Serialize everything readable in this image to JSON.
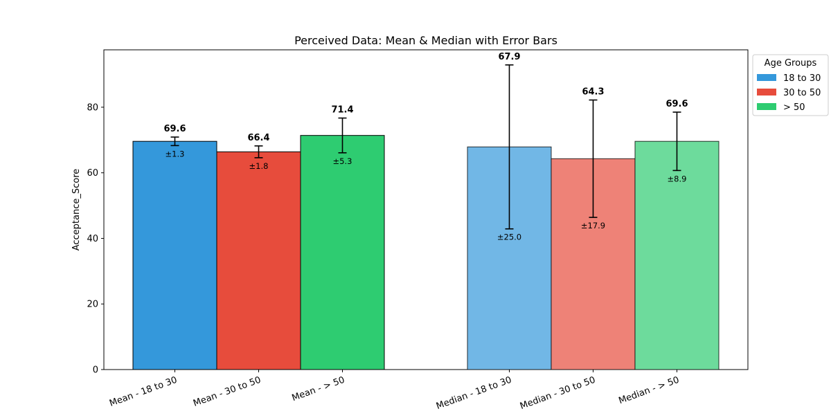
{
  "chart_data": {
    "type": "bar",
    "title": "Perceived Data: Mean & Median with Error Bars",
    "xlabel": "",
    "ylabel": "Acceptance_Score",
    "ylim": [
      0,
      97.5
    ],
    "yticks": [
      0,
      20,
      40,
      60,
      80
    ],
    "grid": false,
    "legend": {
      "title": "Age Groups",
      "placement": "outside-top-right",
      "entries": [
        {
          "label": "18 to 30",
          "color": "#3498db"
        },
        {
          "label": "30 to 50",
          "color": "#e74c3c"
        },
        {
          "label": "> 50",
          "color": "#2ecc71"
        }
      ]
    },
    "bars": [
      {
        "category": "Mean - 18 to 30",
        "value": 69.6,
        "error": 1.3,
        "value_label": "69.6",
        "error_label": "±1.3",
        "color": "#3498db",
        "light": false
      },
      {
        "category": "Mean - 30 to 50",
        "value": 66.4,
        "error": 1.8,
        "value_label": "66.4",
        "error_label": "±1.8",
        "color": "#e74c3c",
        "light": false
      },
      {
        "category": "Mean - > 50",
        "value": 71.4,
        "error": 5.3,
        "value_label": "71.4",
        "error_label": "±5.3",
        "color": "#2ecc71",
        "light": false
      },
      {
        "category": "Median - 18 to 30",
        "value": 67.9,
        "error": 25.0,
        "value_label": "67.9",
        "error_label": "±25.0",
        "color": "#3498db",
        "light": true
      },
      {
        "category": "Median - 30 to 50",
        "value": 64.3,
        "error": 17.9,
        "value_label": "64.3",
        "error_label": "±17.9",
        "color": "#e74c3c",
        "light": true
      },
      {
        "category": "Median - > 50",
        "value": 69.6,
        "error": 8.9,
        "value_label": "69.6",
        "error_label": "±8.9",
        "color": "#2ecc71",
        "light": true
      }
    ]
  }
}
